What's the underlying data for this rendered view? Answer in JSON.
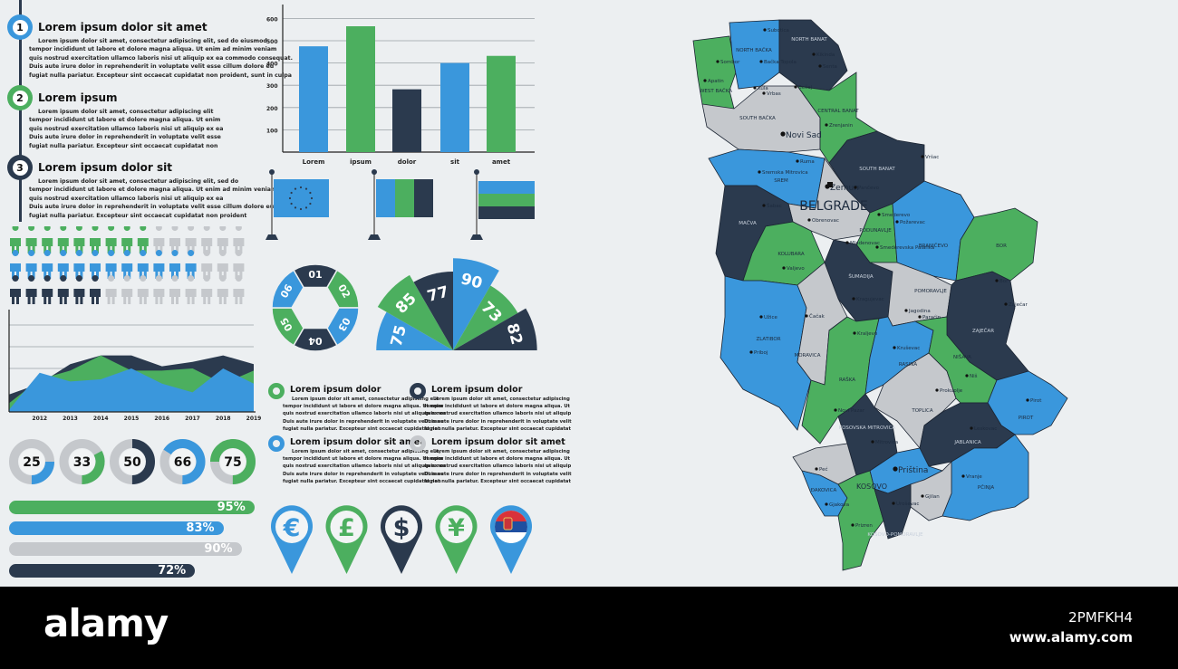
{
  "colors": {
    "blue": "#3a97dc",
    "green": "#4caf5f",
    "navy": "#2b3a4e",
    "grey": "#c5c8cc",
    "bg": "#eceff1"
  },
  "timeline": [
    {
      "num": "1",
      "title": "Lorem ipsum dolor sit amet",
      "lines": [
        "Lorem ipsum dolor sit amet, consectetur adipiscing elit, sed do eiusmod",
        "tempor incididunt ut labore et dolore magna aliqua. Ut enim ad minim veniam",
        "quis nostrud exercitation ullamco laboris nisi ut aliquip ex ea commodo consequat.",
        "Duis aute irure dolor in reprehenderit in voluptate velit esse cillum dolore eu",
        "fugiat nulla pariatur. Excepteur sint occaecat cupidatat non proident, sunt in culpa"
      ]
    },
    {
      "num": "2",
      "title": "Lorem ipsum",
      "lines": [
        "Lorem ipsum dolor sit amet, consectetur adipiscing elit",
        "tempor incididunt ut labore et dolore magna aliqua. Ut enim",
        "quis nostrud exercitation ullamco laboris nisi ut aliquip ex ea",
        "Duis aute irure dolor in reprehenderit in voluptate velit esse",
        "fugiat nulla pariatur. Excepteur sint occaecat cupidatat non"
      ]
    },
    {
      "num": "3",
      "title": "Lorem ipsum dolor sit",
      "lines": [
        "Lorem ipsum dolor sit amet, consectetur adipiscing elit, sed do",
        "tempor incididunt ut labore et dolore magna aliqua. Ut enim ad minim veniam",
        "quis nostrud exercitation ullamco laboris nisi ut aliquip ex ea",
        "Duis aute irure dolor in reprehenderit in voluptate velit esse cillum dolore eu",
        "fugiat nulla pariatur. Excepteur sint occaecat cupidatat non proident"
      ]
    }
  ],
  "chart_data": [
    {
      "type": "bar",
      "title": "",
      "xlabel": "",
      "ylabel": "",
      "categories": [
        "Lorem",
        "ipsum",
        "dolor",
        "sit",
        "amet"
      ],
      "values": [
        475,
        565,
        282,
        400,
        432
      ],
      "yticks": [
        "100",
        "200",
        "300",
        "400",
        "500",
        "600"
      ],
      "ylim": [
        0,
        650
      ],
      "grid": true,
      "bar_colors": [
        "blue",
        "green",
        "navy",
        "blue",
        "green"
      ]
    },
    {
      "type": "area",
      "x": [
        "2012",
        "2013",
        "2014",
        "2015",
        "2016",
        "2017",
        "2018",
        "2019"
      ],
      "ylim": [
        0,
        4.5
      ],
      "grid": true,
      "series": [
        {
          "name": "navy",
          "x": [
            2011,
            2012,
            2013,
            2014,
            2015,
            2016,
            2017,
            2018,
            2019
          ],
          "values": [
            0.8,
            1.3,
            2.2,
            2.6,
            2.6,
            2.1,
            2.3,
            2.6,
            2.2
          ]
        },
        {
          "name": "green",
          "x": [
            2011,
            2012,
            2013,
            2014,
            2015,
            2016,
            2017,
            2018,
            2019
          ],
          "values": [
            0.4,
            1.5,
            1.9,
            2.6,
            1.9,
            1.9,
            2.0,
            1.3,
            1.9
          ]
        },
        {
          "name": "blue",
          "x": [
            2011,
            2012,
            2013,
            2014,
            2015,
            2016,
            2017,
            2018,
            2019
          ],
          "values": [
            0.1,
            1.8,
            1.4,
            1.5,
            2.0,
            1.3,
            0.9,
            2.0,
            1.3
          ]
        }
      ]
    },
    {
      "type": "pie",
      "title": "fan",
      "labels": [
        "75",
        "85",
        "77",
        "90",
        "73",
        "82"
      ],
      "values": [
        75,
        85,
        77,
        90,
        73,
        82
      ],
      "colors": [
        "blue",
        "green",
        "navy",
        "blue",
        "green",
        "navy"
      ]
    },
    {
      "type": "pie",
      "title": "ring",
      "labels": [
        "01",
        "02",
        "03",
        "04",
        "05",
        "06"
      ],
      "values": [
        1,
        1,
        1,
        1,
        1,
        1
      ],
      "colors": [
        "navy",
        "green",
        "blue",
        "navy",
        "green",
        "blue"
      ]
    }
  ],
  "people": [
    {
      "color": "green",
      "filled": 9,
      "total": 15
    },
    {
      "color": "blue",
      "filled": 12,
      "total": 15
    },
    {
      "color": "navy",
      "filled": 6,
      "total": 15
    }
  ],
  "donuts": [
    {
      "label": "25",
      "value": 25,
      "color": "blue"
    },
    {
      "label": "33",
      "value": 33,
      "color": "green"
    },
    {
      "label": "50",
      "value": 50,
      "color": "navy"
    },
    {
      "label": "66",
      "value": 66,
      "color": "blue"
    },
    {
      "label": "75",
      "value": 75,
      "color": "green"
    }
  ],
  "progress": [
    {
      "label": "95%",
      "value": 95,
      "color": "green"
    },
    {
      "label": "83%",
      "value": 83,
      "color": "blue"
    },
    {
      "label": "90%",
      "value": 90,
      "color": "grey"
    },
    {
      "label": "72%",
      "value": 72,
      "color": "navy"
    }
  ],
  "info": [
    {
      "title": "Lorem ipsum dolor",
      "color": "green",
      "lines": [
        "Lorem ipsum dolor sit amet, consectetur adipiscing elit",
        "tempor incididunt ut labore et dolore magna aliqua. Ut enim",
        "quis nostrud exercitation ullamco laboris nisi ut aliquip ex ea",
        "Duis aute irure dolor in reprehenderit in voluptate velit esse",
        "fugiat nulla pariatur. Excepteur sint occaecat cupidatat non"
      ]
    },
    {
      "title": "Lorem ipsum dolor",
      "color": "navy",
      "lines": [
        "Lorem ipsum dolor sit amet, consectetur adipiscing",
        "tempor incididunt ut labore et dolore magna aliqua. Ut",
        "quis nostrud exercitation ullamco laboris nisi ut aliquip",
        "Duis aute irure dolor in reprehenderit in voluptate velit",
        "fugiat nulla pariatur. Excepteur sint occaecat cupidatat"
      ]
    },
    {
      "title": "Lorem ipsum dolor sit amet",
      "color": "blue",
      "lines": [
        "Lorem ipsum dolor sit amet, consectetur adipiscing elit,",
        "tempor incididunt ut labore et dolore magna aliqua. Ut enim",
        "quis nostrud exercitation ullamco laboris nisi ut aliquip ex ea",
        "Duis aute irure dolor in reprehenderit in voluptate velit esse",
        "fugiat nulla pariatur. Excepteur sint occaecat cupidatat non"
      ]
    },
    {
      "title": "Lorem ipsum dolor sit amet",
      "color": "grey",
      "lines": [
        "Lorem ipsum dolor sit amet, consectetur adipiscing",
        "tempor incididunt ut labore et dolore magna aliqua. Ut",
        "quis nostrud exercitation ullamco laboris nisi ut aliquip",
        "Duis aute irure dolor in reprehenderit in voluptate velit",
        "fugiat nulla pariatur. Excepteur sint occaecat cupidatat"
      ]
    }
  ],
  "pins": [
    {
      "icon": "euro-icon",
      "symbol": "€",
      "color": "blue"
    },
    {
      "icon": "pound-icon",
      "symbol": "£",
      "color": "green"
    },
    {
      "icon": "dollar-icon",
      "symbol": "$",
      "color": "navy"
    },
    {
      "icon": "yen-icon",
      "symbol": "¥",
      "color": "green"
    },
    {
      "icon": "serbia-flag-icon",
      "symbol": "",
      "color": "blue"
    }
  ],
  "map": {
    "regions": [
      "WEST BAČKA",
      "NORTH BAČKA",
      "NORTH BANAT",
      "SOUTH BAČKA",
      "CENTRAL BANAT",
      "SOUTH BANAT",
      "SREM",
      "BELGRADE",
      "MAČVA",
      "KOLUBARA",
      "PODUNAVLJE",
      "BRANIČEVO",
      "BOR",
      "ŠUMADIJA",
      "POMORAVLJE",
      "ZAJEČAR",
      "ZLATIBOR",
      "MORAVICA",
      "RAŠKA",
      "RASINA",
      "TOPLICA",
      "NIŠAVA",
      "PIROT",
      "JABLANICA",
      "PČINJA",
      "KOSOVSKA MITROVICA",
      "KOSOVO",
      "GJILAN",
      "PEĆ",
      "ĐAKOVICA",
      "PRIZREN",
      "KOSOVO-POMORAVLJE"
    ],
    "cities": [
      "Subotica",
      "Bačka Topola",
      "Sombor",
      "Apatin",
      "Kula",
      "Vrbas",
      "Bečej",
      "Novi Sad",
      "Zrenjanin",
      "Sremska Mitrovica",
      "Ruma",
      "Zemun",
      "Pančevo",
      "Obrenovac",
      "Smederevo",
      "Požarevac",
      "Mladenovac",
      "Smederevska Palanka",
      "Valjevo",
      "Šabac",
      "Kragujevac",
      "Jagodina",
      "Paraćin",
      "Bor",
      "Zaječar",
      "Užice",
      "Priboj",
      "Čačak",
      "Kraljevo",
      "Kruševac",
      "Niš",
      "Prokuplje",
      "Pirot",
      "Leskovac",
      "Vranje",
      "Novi Pazar",
      "Mitrovica",
      "Priština",
      "Peć",
      "Gjakova",
      "Prizren",
      "Gjilan",
      "Uroševac",
      "Kikinda",
      "Senta",
      "Vršac"
    ]
  },
  "footer": {
    "logo": "alamy",
    "image_id": "2PMFKH4",
    "url": "www.alamy.com"
  }
}
